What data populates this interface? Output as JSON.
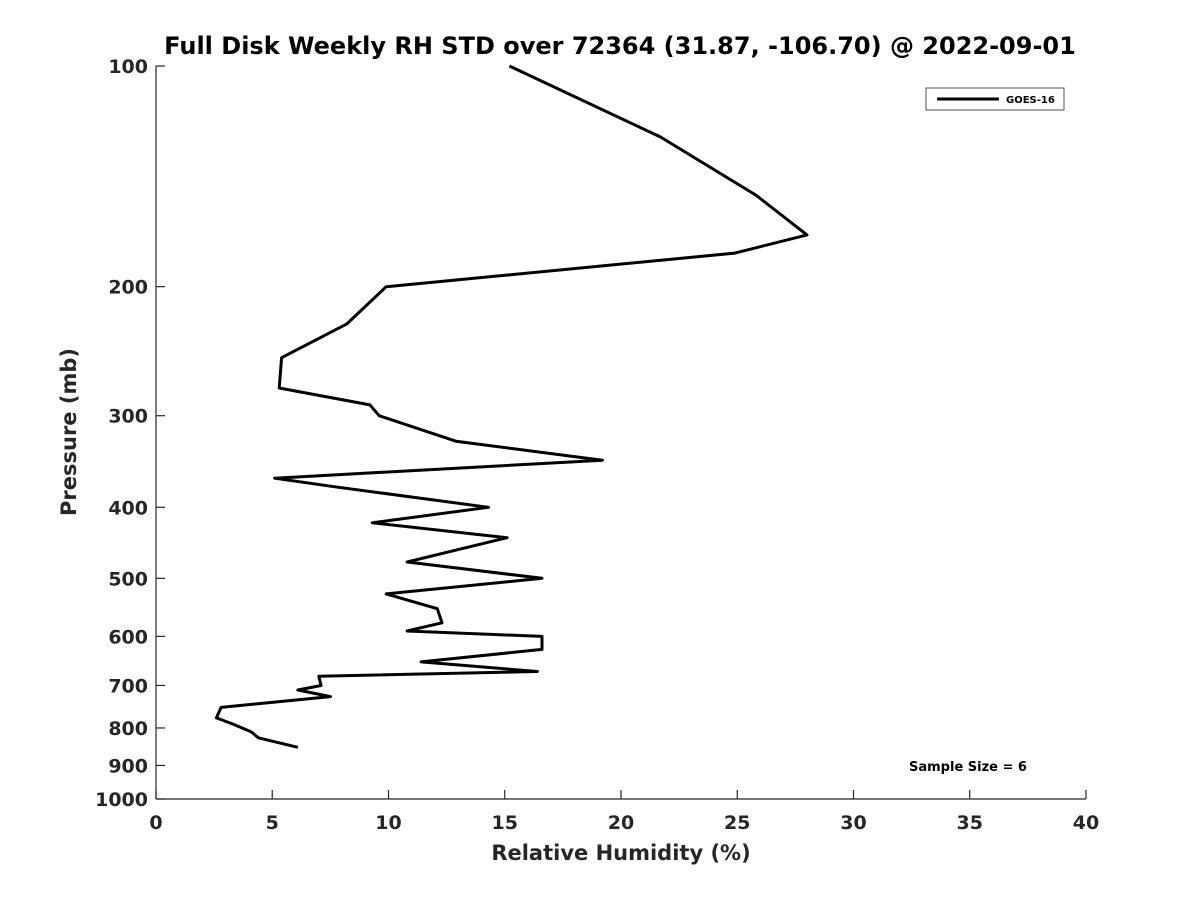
{
  "chart_data": {
    "type": "line",
    "title": "Full Disk Weekly RH STD over 72364 (31.87, -106.70) @ 2022-09-01",
    "xlabel": "Relative Humidity (%)",
    "ylabel": "Pressure (mb)",
    "xlim": [
      0,
      40
    ],
    "ylim": [
      100,
      1000
    ],
    "y_scale": "log",
    "y_reversed": true,
    "x_ticks": [
      "0",
      "5",
      "10",
      "15",
      "20",
      "25",
      "30",
      "35",
      "40"
    ],
    "y_ticks": [
      "100",
      "200",
      "300",
      "400",
      "500",
      "600",
      "700",
      "800",
      "900",
      "1000"
    ],
    "grid": false,
    "legend_position": "top-right",
    "annotation": "Sample Size = 6",
    "series": [
      {
        "name": "GOES-16",
        "color": "#000000",
        "points": [
          {
            "x": 15.2,
            "y": 100
          },
          {
            "x": 21.7,
            "y": 125
          },
          {
            "x": 25.8,
            "y": 150
          },
          {
            "x": 28.0,
            "y": 170
          },
          {
            "x": 24.9,
            "y": 180
          },
          {
            "x": 9.9,
            "y": 200
          },
          {
            "x": 8.2,
            "y": 225
          },
          {
            "x": 5.4,
            "y": 250
          },
          {
            "x": 5.3,
            "y": 275
          },
          {
            "x": 9.2,
            "y": 290
          },
          {
            "x": 9.6,
            "y": 300
          },
          {
            "x": 12.9,
            "y": 325
          },
          {
            "x": 19.2,
            "y": 345
          },
          {
            "x": 5.1,
            "y": 365
          },
          {
            "x": 7.7,
            "y": 375
          },
          {
            "x": 14.3,
            "y": 400
          },
          {
            "x": 9.3,
            "y": 420
          },
          {
            "x": 15.1,
            "y": 440
          },
          {
            "x": 12.6,
            "y": 460
          },
          {
            "x": 10.8,
            "y": 475
          },
          {
            "x": 16.6,
            "y": 500
          },
          {
            "x": 9.9,
            "y": 525
          },
          {
            "x": 12.1,
            "y": 550
          },
          {
            "x": 12.3,
            "y": 575
          },
          {
            "x": 10.8,
            "y": 590
          },
          {
            "x": 16.6,
            "y": 600
          },
          {
            "x": 16.6,
            "y": 625
          },
          {
            "x": 11.4,
            "y": 650
          },
          {
            "x": 16.4,
            "y": 670
          },
          {
            "x": 7.0,
            "y": 680
          },
          {
            "x": 7.1,
            "y": 700
          },
          {
            "x": 6.1,
            "y": 710
          },
          {
            "x": 7.5,
            "y": 725
          },
          {
            "x": 2.8,
            "y": 750
          },
          {
            "x": 2.6,
            "y": 775
          },
          {
            "x": 3.3,
            "y": 790
          },
          {
            "x": 4.1,
            "y": 810
          },
          {
            "x": 4.4,
            "y": 825
          },
          {
            "x": 6.1,
            "y": 850
          }
        ]
      }
    ]
  }
}
